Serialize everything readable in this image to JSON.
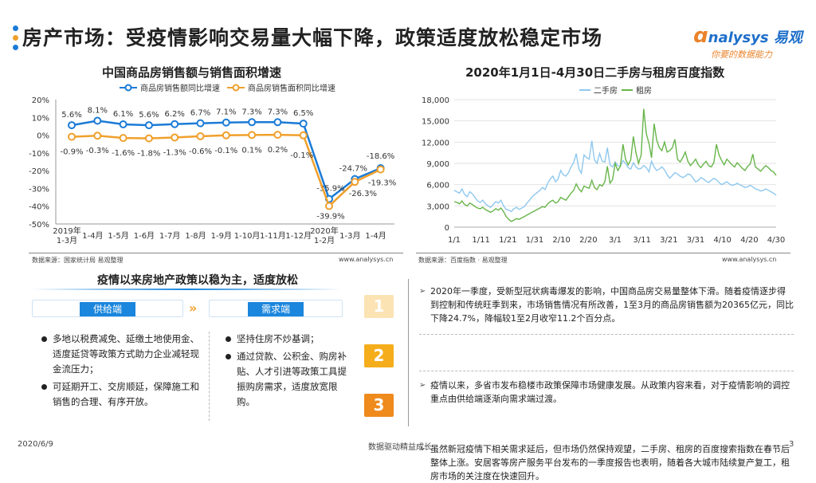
{
  "title": "房产市场：受疫情影响交易量大幅下降，政策适度放松稳定市场",
  "logo": {
    "brand": "nalysys 易观",
    "tagline": "你要的数据能力"
  },
  "left_chart_meta": {
    "source": "数据来源：国家统计局 易观整理",
    "url": "www.analysys.cn"
  },
  "right_chart_meta": {
    "source": "数据来源：百度指数 · 易观整理",
    "url": "www.analysys.cn"
  },
  "chart_data": [
    {
      "type": "line",
      "title": "中国商品房销售额与销售面积增速",
      "categories": [
        "2019年 1-3月",
        "1-4月",
        "1-5月",
        "1-6月",
        "1-7月",
        "1-8月",
        "1-9月",
        "1-10月",
        "1-11月",
        "1-12月",
        "2020年 1-2月",
        "1-3月",
        "1-4月"
      ],
      "x_tick_labels": [
        "2019年\n1-3月",
        "1-4月",
        "1-5月",
        "1-6月",
        "1-7月",
        "1-8月",
        "1-9月",
        "1-10月",
        "1-11月",
        "1-12月",
        "2020年\n1-2月",
        "1-3月",
        "1-4月"
      ],
      "series": [
        {
          "name": "商品房销售额同比增速",
          "color": "#1b7bd6",
          "values": [
            5.6,
            8.1,
            6.1,
            5.6,
            6.2,
            6.7,
            7.1,
            7.3,
            7.3,
            6.5,
            -35.9,
            -24.7,
            -18.6
          ],
          "labels": [
            "5.6%",
            "8.1%",
            "6.1%",
            "5.6%",
            "6.2%",
            "6.7%",
            "7.1%",
            "7.3%",
            "7.3%",
            "6.5%",
            "-35.9%",
            "-24.7%",
            "-18.6%"
          ]
        },
        {
          "name": "商品房销售面积同比增速",
          "color": "#f0a02c",
          "values": [
            -0.9,
            -0.3,
            -1.6,
            -1.8,
            -1.3,
            -0.6,
            -0.1,
            0.1,
            0.2,
            -0.1,
            -39.9,
            -26.3,
            -19.3
          ],
          "labels": [
            "-0.9%",
            "-0.3%",
            "-1.6%",
            "-1.8%",
            "-1.3%",
            "-0.6%",
            "-0.1%",
            "0.1%",
            "0.2%",
            "-0.1%",
            "-39.9%",
            "-26.3%",
            "-19.3%"
          ]
        }
      ],
      "ylim": [
        -50,
        20
      ],
      "yticks": [
        "20%",
        "10%",
        "0%",
        "-10%",
        "-20%",
        "-30%",
        "-40%",
        "-50%"
      ],
      "grid": false,
      "legend": "top"
    },
    {
      "type": "line",
      "title": "2020年1月1日-4月30日二手房与租房百度指数",
      "x_tick_labels": [
        "1/1",
        "1/11",
        "1/21",
        "1/31",
        "2/10",
        "2/20",
        "3/1",
        "3/11",
        "3/21",
        "3/31",
        "4/10",
        "4/20",
        "4/30"
      ],
      "ylim": [
        0,
        18000
      ],
      "yticks": [
        "18,000",
        "15,000",
        "12,000",
        "9,000",
        "6,000",
        "3,000",
        "0"
      ],
      "grid": true,
      "legend": "top",
      "series": [
        {
          "name": "二手房",
          "color": "#8fc8ee",
          "values": [
            5200,
            5000,
            4800,
            5400,
            4600,
            4300,
            5000,
            4700,
            4200,
            3700,
            3500,
            3800,
            3300,
            3000,
            2800,
            3200,
            3600,
            3400,
            3800,
            3000,
            2500,
            2400,
            2200,
            2600,
            2800,
            2500,
            2700,
            2900,
            3400,
            3800,
            4300,
            4600,
            4900,
            5200,
            5600,
            5300,
            6200,
            6800,
            7200,
            6400,
            6800,
            8000,
            7400,
            7200,
            7700,
            8500,
            9100,
            10400,
            8200,
            7600,
            10200,
            9800,
            9600,
            12200,
            9500,
            9000,
            10400,
            9300,
            9200,
            11200,
            8800,
            8500,
            9200,
            8700,
            8600,
            9400,
            9000,
            8400,
            8200,
            9100,
            8500,
            8200,
            8300,
            8700,
            8400,
            7800,
            9300,
            8500,
            8000,
            8200,
            8500,
            8100,
            7400,
            6900,
            7300,
            7700,
            7500,
            7200,
            7000,
            7200,
            7500,
            7400,
            6900,
            6400,
            6600,
            7000,
            6800,
            6500,
            6300,
            6600,
            6900,
            6700,
            6300,
            6000,
            6200,
            6400,
            6100,
            5900,
            6000,
            6200,
            6000,
            5800,
            5600,
            5700,
            5900,
            5700,
            5400,
            5300,
            5100,
            5200,
            5400,
            5200,
            5000,
            4800,
            4500
          ]
        },
        {
          "name": "租房",
          "color": "#67b54a",
          "values": [
            3600,
            3500,
            3300,
            3700,
            3200,
            3000,
            3400,
            3200,
            2900,
            2700,
            2600,
            2800,
            2500,
            2300,
            2100,
            2300,
            2600,
            2400,
            2700,
            2200,
            1500,
            1100,
            800,
            1000,
            1200,
            1100,
            1300,
            1500,
            1700,
            1900,
            2100,
            2300,
            2500,
            2700,
            2900,
            2800,
            3300,
            3600,
            3800,
            3400,
            3600,
            4200,
            4000,
            3800,
            4300,
            4800,
            5200,
            6100,
            5400,
            5000,
            5800,
            5600,
            5500,
            6600,
            5600,
            5300,
            6000,
            5800,
            6400,
            8600,
            6200,
            6700,
            9000,
            8000,
            8600,
            11700,
            9600,
            8800,
            9500,
            12800,
            10500,
            9000,
            10200,
            16700,
            13200,
            11800,
            9800,
            14600,
            12300,
            11200,
            10800,
            12000,
            10600,
            10800,
            11200,
            12400,
            9600,
            9200,
            9800,
            10600,
            9300,
            8700,
            9100,
            9600,
            8800,
            8400,
            8900,
            9300,
            8700,
            8500,
            9100,
            11700,
            10200,
            9400,
            8800,
            9600,
            9200,
            8800,
            8500,
            9100,
            8700,
            8300,
            8000,
            8600,
            8900,
            10300,
            8500,
            8200,
            7900,
            8300,
            8700,
            8400,
            8000,
            7800,
            7300
          ]
        }
      ]
    }
  ],
  "policy": {
    "title": "疫情以来房地产政策以稳为主，适度放松",
    "supply_label": "供给端",
    "demand_label": "需求端",
    "supply_items": [
      "多地以税费减免、延缴土地使用金、适度延贷等政策方式助力企业减轻现金流压力；",
      "可延期开工、交房顺延，保障施工和销售的合理、有序开放。"
    ],
    "demand_items": [
      "坚持住房不炒基调；",
      "通过贷款、公积金、购房补贴、人才引进等政策工具提振购房需求，适度放宽限购。"
    ]
  },
  "points": [
    {
      "number": "1",
      "color": "#fbe3b3",
      "text": "2020年一季度，受新型冠状病毒爆发的影响，中国商品房交易量整体下滑。随着疫情逐步得到控制和传统旺季到来，市场销售情况有所改善，1至3月的商品房销售额为20365亿元，同比下降24.7%，降幅较1至2月收窄11.2个百分点。"
    },
    {
      "number": "2",
      "color": "#f5ad1b",
      "text": "疫情以来，多省市发布稳楼市政策保障市场健康发展。从政策内容来看，对于疫情影响的调控重点由供给端逐渐向需求端过渡。"
    },
    {
      "number": "3",
      "color": "#ef8a1c",
      "text": "虽然新冠疫情下相关需求延后，但市场仍然保持观望，二手房、租房的百度搜索指数在春节后整体上涨。安居客等房产服务平台发布的一季度报告也表明，随着各大城市陆续复产复工，租房市场的关注度在快速回升。"
    }
  ],
  "footer": {
    "date": "2020/6/9",
    "slogan": "数据驱动精益成长",
    "page": "3"
  }
}
